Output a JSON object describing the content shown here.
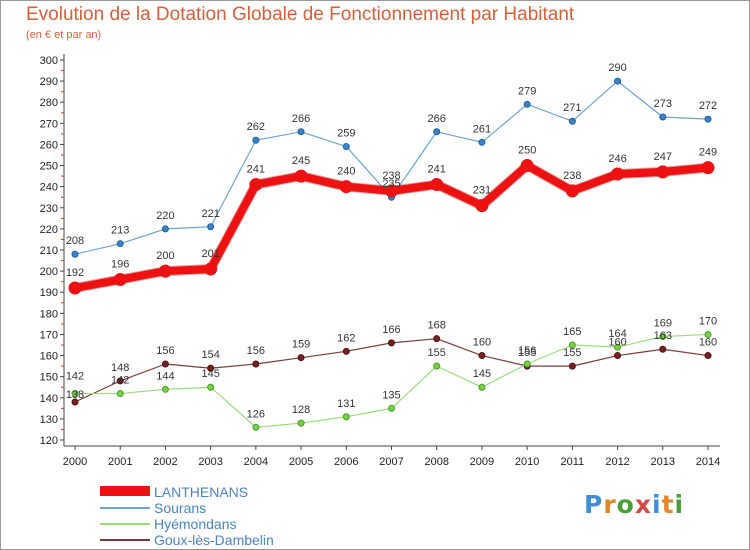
{
  "title": "Evolution de la Dotation Globale de Fonctionnement par Habitant",
  "subtitle": "(en € et par an)",
  "logo": {
    "text": "Proxiti",
    "letters": [
      "P",
      "r",
      "o",
      "x",
      "i",
      "t",
      "i"
    ],
    "colors": [
      "#3e8fd6",
      "#e2862c",
      "#4a9e3a",
      "#d24a4a",
      "#3e8fd6",
      "#e2862c",
      "#4a9e3a"
    ]
  },
  "chart_data": {
    "type": "line",
    "title": "Evolution de la Dotation Globale de Fonctionnement par Habitant",
    "subtitle": "(en € et par an)",
    "xlabel": "",
    "ylabel": "",
    "x": [
      "2000",
      "2001",
      "2002",
      "2003",
      "2004",
      "2005",
      "2006",
      "2007",
      "2008",
      "2009",
      "2010",
      "2011",
      "2012",
      "2013",
      "2014"
    ],
    "ylim": [
      120,
      300
    ],
    "yticks": [
      120,
      130,
      140,
      150,
      160,
      170,
      180,
      190,
      200,
      210,
      220,
      230,
      240,
      250,
      260,
      270,
      280,
      290,
      300
    ],
    "grid": false,
    "legend": "bottom-left",
    "series": [
      {
        "name": "LANTHENANS",
        "color": "#ee1111",
        "values": [
          192,
          196,
          200,
          201,
          241,
          245,
          240,
          238,
          241,
          231,
          250,
          238,
          246,
          247,
          249
        ],
        "labels": [
          "192",
          "196",
          "200",
          "201",
          "241",
          "245",
          "240",
          "238",
          "241",
          "231",
          "250",
          "238",
          "246",
          "247",
          "249"
        ]
      },
      {
        "name": "Sourans",
        "color": "#6da4d2",
        "values": [
          208,
          213,
          220,
          221,
          262,
          266,
          259,
          235,
          266,
          261,
          279,
          271,
          290,
          273,
          272
        ],
        "labels": [
          "208",
          "213",
          "220",
          "221",
          "262",
          "266",
          "259",
          "235",
          "266",
          "261",
          "279",
          "271",
          "290",
          "273",
          "272"
        ]
      },
      {
        "name": "Hyémondans",
        "color": "#99dd77",
        "values": [
          142,
          142,
          144,
          145,
          126,
          128,
          131,
          135,
          155,
          145,
          156,
          165,
          164,
          169,
          170
        ],
        "labels": [
          "142",
          "142",
          "144",
          "145",
          "126",
          "128",
          "131",
          "135",
          "155",
          "145",
          "156",
          "165",
          "164",
          "169",
          "170"
        ]
      },
      {
        "name": "Goux-lès-Dambelin",
        "color": "#7a3a3a",
        "values": [
          138,
          148,
          156,
          154,
          156,
          159,
          162,
          166,
          168,
          160,
          155,
          155,
          160,
          163,
          160
        ],
        "labels": [
          "138",
          "148",
          "156",
          "154",
          "156",
          "159",
          "162",
          "166",
          "168",
          "160",
          "155",
          "155",
          "160",
          "163",
          "160"
        ]
      }
    ]
  }
}
